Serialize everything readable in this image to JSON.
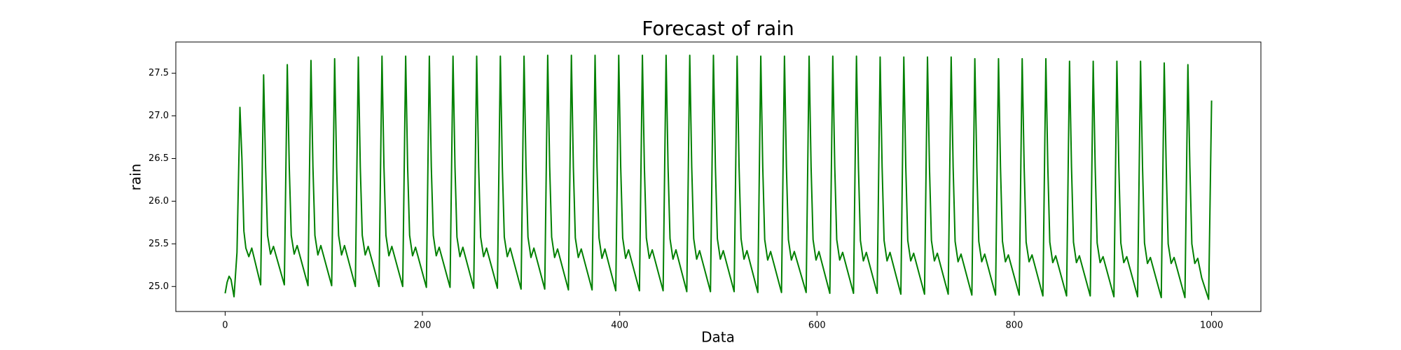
{
  "chart_data": {
    "type": "line",
    "title": "Forecast of rain",
    "xlabel": "Data",
    "ylabel": "rain",
    "color": "#008000",
    "xlim": [
      -50,
      1050
    ],
    "ylim": [
      24.707,
      27.866
    ],
    "xticks": [
      0,
      200,
      400,
      600,
      800,
      1000
    ],
    "yticks": [
      {
        "value": 25,
        "label": "25.0"
      },
      25.5,
      {
        "value": 26,
        "label": "26.0"
      },
      26.5,
      {
        "value": 27,
        "label": "27.0"
      },
      27.5
    ],
    "x": [
      0,
      2,
      4,
      6,
      9,
      12,
      15,
      17,
      19,
      21,
      24,
      27,
      36,
      39,
      41,
      43,
      46,
      49,
      60,
      63,
      65,
      67,
      70,
      73,
      84,
      87,
      89,
      91,
      94,
      97,
      108,
      111,
      113,
      115,
      118,
      121,
      132,
      135,
      137,
      139,
      142,
      145,
      156,
      159,
      161,
      163,
      166,
      169,
      180,
      183,
      185,
      187,
      190,
      193,
      204,
      207,
      209,
      211,
      214,
      217,
      228,
      231,
      233,
      235,
      238,
      241,
      252,
      255,
      257,
      259,
      262,
      265,
      276,
      279,
      281,
      283,
      286,
      289,
      300,
      303,
      305,
      307,
      310,
      313,
      324,
      327,
      329,
      331,
      334,
      337,
      348,
      351,
      353,
      355,
      358,
      361,
      372,
      375,
      377,
      379,
      382,
      385,
      396,
      399,
      401,
      403,
      406,
      409,
      420,
      423,
      425,
      427,
      430,
      433,
      444,
      447,
      449,
      451,
      454,
      457,
      468,
      471,
      473,
      475,
      478,
      481,
      492,
      495,
      497,
      499,
      502,
      505,
      516,
      519,
      521,
      523,
      526,
      529,
      540,
      543,
      545,
      547,
      550,
      553,
      564,
      567,
      569,
      571,
      574,
      577,
      589,
      592,
      594,
      596,
      599,
      602,
      613,
      616,
      618,
      620,
      623,
      626,
      637,
      640,
      642,
      644,
      647,
      650,
      661,
      664,
      666,
      668,
      671,
      674,
      685,
      688,
      690,
      692,
      695,
      698,
      709,
      712,
      714,
      716,
      719,
      722,
      733,
      736,
      738,
      740,
      743,
      746,
      757,
      760,
      762,
      764,
      767,
      770,
      781,
      784,
      786,
      788,
      791,
      794,
      805,
      808,
      810,
      812,
      815,
      818,
      829,
      832,
      834,
      836,
      839,
      842,
      853,
      856,
      858,
      860,
      863,
      866,
      877,
      880,
      882,
      884,
      887,
      890,
      901,
      904,
      906,
      908,
      911,
      914,
      925,
      928,
      930,
      932,
      935,
      938,
      949,
      952,
      954,
      956,
      959,
      962,
      973,
      976,
      978,
      980,
      983,
      986,
      990,
      997,
      1000
    ],
    "values": [
      24.92,
      25.05,
      25.12,
      25.08,
      24.88,
      25.4,
      27.1,
      26.5,
      25.65,
      25.45,
      25.35,
      25.45,
      25.02,
      27.48,
      26.4,
      25.6,
      25.38,
      25.47,
      25.02,
      27.6,
      26.4,
      25.6,
      25.38,
      25.48,
      25.01,
      27.65,
      26.4,
      25.6,
      25.37,
      25.48,
      25.01,
      27.67,
      26.4,
      25.6,
      25.37,
      25.48,
      25.0,
      27.69,
      26.4,
      25.6,
      25.37,
      25.47,
      25.0,
      27.7,
      26.4,
      25.6,
      25.36,
      25.47,
      25.0,
      27.7,
      26.4,
      25.6,
      25.36,
      25.46,
      24.99,
      27.7,
      26.4,
      25.6,
      25.36,
      25.46,
      24.99,
      27.7,
      26.4,
      25.58,
      25.35,
      25.46,
      24.98,
      27.7,
      26.4,
      25.58,
      25.35,
      25.45,
      24.98,
      27.7,
      26.4,
      25.58,
      25.35,
      25.45,
      24.97,
      27.7,
      26.4,
      25.58,
      25.34,
      25.45,
      24.97,
      27.71,
      26.4,
      25.58,
      25.34,
      25.44,
      24.96,
      27.71,
      26.4,
      25.57,
      25.34,
      25.44,
      24.96,
      27.71,
      26.4,
      25.57,
      25.33,
      25.44,
      24.95,
      27.71,
      26.4,
      25.57,
      25.33,
      25.43,
      24.95,
      27.71,
      26.4,
      25.57,
      25.33,
      25.43,
      24.95,
      27.71,
      26.4,
      25.56,
      25.32,
      25.43,
      24.94,
      27.71,
      26.4,
      25.56,
      25.32,
      25.42,
      24.94,
      27.71,
      26.4,
      25.56,
      25.32,
      25.42,
      24.94,
      27.7,
      26.4,
      25.56,
      25.32,
      25.42,
      24.93,
      27.7,
      26.4,
      25.55,
      25.31,
      25.41,
      24.93,
      27.7,
      26.4,
      25.55,
      25.31,
      25.41,
      24.93,
      27.7,
      26.4,
      25.55,
      25.31,
      25.41,
      24.92,
      27.7,
      26.4,
      25.55,
      25.31,
      25.4,
      24.92,
      27.7,
      26.4,
      25.54,
      25.3,
      25.4,
      24.92,
      27.69,
      26.4,
      25.54,
      25.3,
      25.4,
      24.91,
      27.69,
      26.4,
      25.54,
      25.3,
      25.39,
      24.91,
      27.69,
      26.4,
      25.54,
      25.3,
      25.39,
      24.91,
      27.69,
      26.4,
      25.53,
      25.29,
      25.38,
      24.9,
      27.67,
      26.4,
      25.53,
      25.29,
      25.38,
      24.9,
      27.67,
      26.4,
      25.53,
      25.29,
      25.37,
      24.9,
      27.67,
      26.4,
      25.52,
      25.29,
      25.37,
      24.89,
      27.67,
      26.4,
      25.52,
      25.28,
      25.36,
      24.89,
      27.64,
      26.4,
      25.52,
      25.28,
      25.36,
      24.89,
      27.64,
      26.4,
      25.51,
      25.28,
      25.35,
      24.88,
      27.64,
      26.4,
      25.51,
      25.28,
      25.35,
      24.88,
      27.64,
      26.4,
      25.51,
      25.27,
      25.34,
      24.87,
      27.62,
      26.4,
      25.5,
      25.27,
      25.34,
      24.87,
      27.6,
      26.4,
      25.5,
      25.27,
      25.33,
      25.1,
      24.85,
      27.18
    ]
  }
}
